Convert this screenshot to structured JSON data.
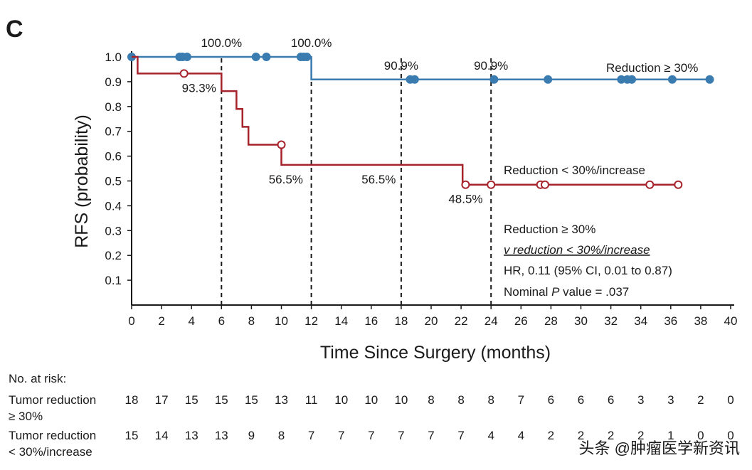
{
  "chart_data": {
    "type": "kaplan-meier",
    "panel_label": "C",
    "xlabel": "Time Since Surgery (months)",
    "ylabel": "RFS (probability)",
    "xlim": [
      0,
      40
    ],
    "ylim": [
      0,
      1.0
    ],
    "x_ticks": [
      0,
      2,
      4,
      6,
      8,
      10,
      12,
      14,
      16,
      18,
      20,
      22,
      24,
      26,
      28,
      30,
      32,
      34,
      36,
      38,
      40
    ],
    "y_ticks": [
      0.1,
      0.2,
      0.3,
      0.4,
      0.5,
      0.6,
      0.7,
      0.8,
      0.9,
      1.0
    ],
    "y_tick_labels": [
      "0.1",
      "0.2",
      "0.3",
      "0.4",
      "0.5",
      "0.6",
      "0.7",
      "0.8",
      "0.9",
      "1.0"
    ],
    "reference_lines_x": [
      6,
      12,
      18,
      24
    ],
    "series": [
      {
        "name": "Reduction ≥ 30%",
        "color": "#3a7bb0",
        "marker": "filled-circle",
        "steps": [
          [
            0,
            1.0
          ],
          [
            12,
            0.909
          ],
          [
            38.6,
            0.909
          ]
        ],
        "censored": [
          [
            0,
            1.0
          ],
          [
            3.2,
            1.0
          ],
          [
            3.4,
            1.0
          ],
          [
            3.7,
            1.0
          ],
          [
            8.3,
            1.0
          ],
          [
            9.0,
            1.0
          ],
          [
            11.3,
            1.0
          ],
          [
            11.5,
            1.0
          ],
          [
            11.7,
            1.0
          ],
          [
            18.6,
            0.909
          ],
          [
            18.9,
            0.909
          ],
          [
            24.2,
            0.909
          ],
          [
            27.8,
            0.909
          ],
          [
            32.7,
            0.909
          ],
          [
            33.1,
            0.909
          ],
          [
            33.4,
            0.909
          ],
          [
            36.1,
            0.909
          ],
          [
            38.6,
            0.909
          ]
        ]
      },
      {
        "name": "Reduction < 30%/increase",
        "color": "#a6232c",
        "marker": "open-circle",
        "steps": [
          [
            0,
            1.0
          ],
          [
            0.4,
            0.933
          ],
          [
            6.0,
            0.862
          ],
          [
            7.0,
            0.79
          ],
          [
            7.4,
            0.718
          ],
          [
            7.8,
            0.646
          ],
          [
            10.0,
            0.565
          ],
          [
            22.1,
            0.485
          ],
          [
            36.5,
            0.485
          ]
        ],
        "censored": [
          [
            3.5,
            0.933
          ],
          [
            10.0,
            0.646
          ],
          [
            22.3,
            0.485
          ],
          [
            24.0,
            0.485
          ],
          [
            27.3,
            0.485
          ],
          [
            27.6,
            0.485
          ],
          [
            34.6,
            0.485
          ],
          [
            36.5,
            0.485
          ]
        ]
      }
    ],
    "annotations": [
      {
        "text": "100.0%",
        "x": 6.0,
        "y": 1.0,
        "pos": "above"
      },
      {
        "text": "100.0%",
        "x": 12.0,
        "y": 1.0,
        "pos": "above"
      },
      {
        "text": "90.9%",
        "x": 18.0,
        "y": 0.909,
        "pos": "above"
      },
      {
        "text": "90.9%",
        "x": 24.0,
        "y": 0.909,
        "pos": "above"
      },
      {
        "text": "93.3%",
        "x": 4.5,
        "y": 0.933,
        "pos": "below"
      },
      {
        "text": "56.5%",
        "x": 10.3,
        "y": 0.565,
        "pos": "below"
      },
      {
        "text": "56.5%",
        "x": 16.5,
        "y": 0.565,
        "pos": "below"
      },
      {
        "text": "48.5%",
        "x": 22.3,
        "y": 0.485,
        "pos": "below"
      }
    ],
    "legend_labels": {
      "series1": "Reduction ≥ 30%",
      "series2": "Reduction < 30%/increase"
    },
    "stats": {
      "line1": "Reduction ≥ 30%",
      "line2": "v reduction < 30%/increase",
      "line3": "HR, 0.11 (95% CI, 0.01 to 0.87)",
      "line4_prefix": "Nominal ",
      "line4_italic": "P",
      "line4_suffix": " value =  .037"
    },
    "risk_table": {
      "header": "No. at risk:",
      "times": [
        0,
        2,
        4,
        6,
        8,
        10,
        12,
        14,
        16,
        18,
        20,
        22,
        24,
        26,
        28,
        30,
        32,
        34,
        36,
        38,
        40
      ],
      "rows": [
        {
          "label_line1": "Tumor reduction",
          "label_line2": "≥ 30%",
          "counts": [
            "18",
            "17",
            "15",
            "15",
            "15",
            "13",
            "11",
            "10",
            "10",
            "10",
            "8",
            "8",
            "8",
            "7",
            "6",
            "6",
            "6",
            "3",
            "3",
            "2",
            "0"
          ]
        },
        {
          "label_line1": "Tumor reduction",
          "label_line2": "< 30%/increase",
          "counts": [
            "15",
            "14",
            "13",
            "13",
            "9",
            "8",
            "7",
            "7",
            "7",
            "7",
            "7",
            "7",
            "4",
            "4",
            "2",
            "2",
            "2",
            "2",
            "1",
            "0",
            "0"
          ]
        }
      ]
    }
  },
  "watermark": "头条 @肿瘤医学新资讯"
}
